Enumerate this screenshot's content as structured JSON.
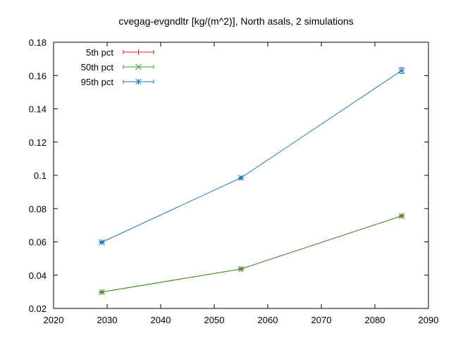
{
  "chart_data": {
    "type": "line",
    "title": "cvegag-evgndltr [kg/(m^2)], North asals, 2 simulations",
    "xlabel": "",
    "ylabel": "",
    "xlim": [
      2020,
      2090
    ],
    "ylim": [
      0.02,
      0.18
    ],
    "x_ticks": [
      2020,
      2030,
      2040,
      2050,
      2060,
      2070,
      2080,
      2090
    ],
    "y_ticks": [
      0.02,
      0.04,
      0.06,
      0.08,
      0.1,
      0.12,
      0.14,
      0.16,
      0.18
    ],
    "x_tick_labels": [
      "2020",
      "2030",
      "2040",
      "2050",
      "2060",
      "2070",
      "2080",
      "2090"
    ],
    "y_tick_labels": [
      "0.02",
      "0.04",
      "0.06",
      "0.08",
      "0.1",
      "0.12",
      "0.14",
      "0.16",
      "0.18"
    ],
    "grid": false,
    "legend_position": "top-left",
    "series": [
      {
        "name": "5th pct",
        "color": "#e41a1c",
        "marker": "plus",
        "x": [
          2029,
          2055,
          2085
        ],
        "y": [
          0.0298,
          0.0437,
          0.0756
        ],
        "err": [
          0.0003,
          0.0004,
          0.0006
        ]
      },
      {
        "name": "50th pct",
        "color": "#33a02c",
        "marker": "x",
        "x": [
          2029,
          2055,
          2085
        ],
        "y": [
          0.0298,
          0.0437,
          0.0756
        ],
        "err": [
          0.0003,
          0.0004,
          0.0006
        ]
      },
      {
        "name": "95th pct",
        "color": "#1f78b4",
        "marker": "star",
        "x": [
          2029,
          2055,
          2085
        ],
        "y": [
          0.0598,
          0.0985,
          0.163
        ],
        "err": [
          0.0004,
          0.0008,
          0.0018
        ]
      }
    ]
  }
}
